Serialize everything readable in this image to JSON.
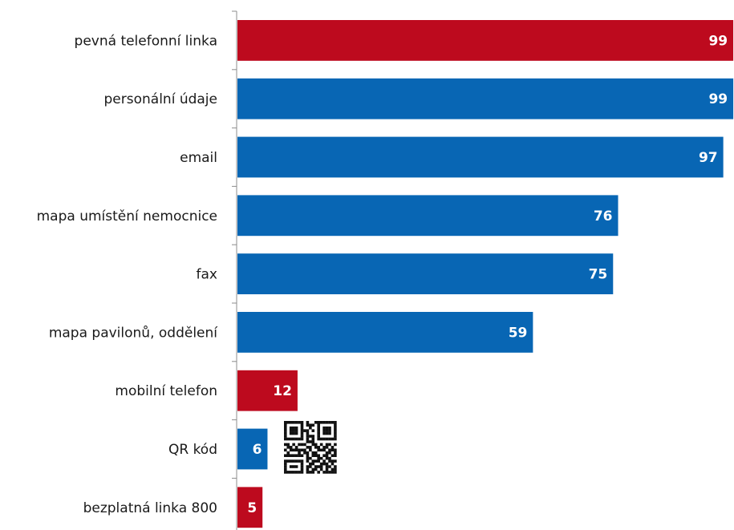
{
  "chart_data": {
    "type": "bar",
    "orientation": "horizontal",
    "categories": [
      "pevná telefonní linka",
      "personální údaje",
      "email",
      "mapa umístění nemocnice",
      "fax",
      "mapa pavilonů, oddělení",
      "mobilní telefon",
      "QR kód",
      "bezplatná linka 800"
    ],
    "values": [
      99,
      99,
      97,
      76,
      75,
      59,
      12,
      6,
      5
    ],
    "bar_colors": [
      "#bd0a1e",
      "#0866b4",
      "#0866b4",
      "#0866b4",
      "#0866b4",
      "#0866b4",
      "#bd0a1e",
      "#0866b4",
      "#bd0a1e"
    ],
    "xlim": [
      0,
      100
    ],
    "grid": false,
    "legend": "none",
    "data_labels": [
      "99",
      "99",
      "97",
      "76",
      "75",
      "59",
      "12",
      "6",
      "5"
    ],
    "annotations": [
      {
        "type": "qr-code-icon",
        "near_category": "QR kód"
      }
    ]
  },
  "colors": {
    "red": "#bd0a1e",
    "blue": "#0866b4",
    "axis": "#8c8c8c"
  }
}
